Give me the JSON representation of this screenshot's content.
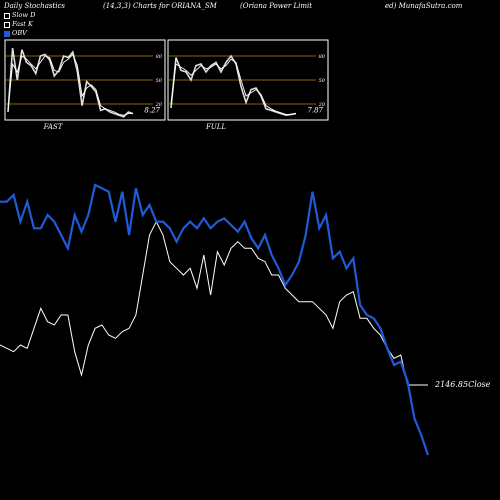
{
  "header": {
    "left": "Daily Stochastics",
    "mid": "(14,3,3) Charts for ORIANA_SM",
    "right": "(Oriana Power Limit",
    "right2": "ed) MunafaSutra.com"
  },
  "legend": [
    "Slow D",
    "Fast K",
    "OBV"
  ],
  "colors": {
    "obv": "#1f5bd8",
    "slow": "#ffffff",
    "fast": "#ffffff",
    "band": "#b8860b",
    "border": "#ffffff"
  },
  "chart_data": [
    {
      "type": "line",
      "title": "FAST",
      "yticks": [
        80,
        50,
        20
      ],
      "ylim": [
        0,
        100
      ],
      "last_value_label": "8.27",
      "series": [
        {
          "name": "Fast K",
          "values": [
            10,
            90,
            50,
            88,
            72,
            68,
            58,
            80,
            82,
            75,
            55,
            62,
            80,
            78,
            85,
            60,
            18,
            48,
            42,
            35,
            12,
            14,
            10,
            8,
            6,
            4,
            10,
            8
          ]
        },
        {
          "name": "Slow D",
          "values": [
            12,
            70,
            60,
            80,
            76,
            70,
            64,
            72,
            80,
            78,
            62,
            60,
            72,
            76,
            82,
            68,
            30,
            40,
            44,
            38,
            18,
            14,
            12,
            10,
            7,
            6,
            8,
            8
          ]
        }
      ]
    },
    {
      "type": "line",
      "title": "FULL",
      "yticks": [
        80,
        50,
        20
      ],
      "ylim": [
        0,
        100
      ],
      "last_value_label": "7.87",
      "series": [
        {
          "name": "Fast K",
          "values": [
            15,
            78,
            62,
            60,
            50,
            68,
            70,
            60,
            68,
            72,
            60,
            72,
            80,
            70,
            42,
            22,
            38,
            40,
            30,
            14,
            12,
            10,
            8,
            6,
            7,
            8
          ]
        },
        {
          "name": "Slow D",
          "values": [
            20,
            70,
            66,
            62,
            56,
            62,
            68,
            64,
            66,
            70,
            64,
            68,
            76,
            72,
            50,
            30,
            34,
            38,
            32,
            18,
            14,
            11,
            9,
            7,
            7,
            8
          ]
        }
      ]
    },
    {
      "type": "line",
      "title": "",
      "last_value_label": "2146.85Close",
      "series": [
        {
          "name": "OBV",
          "values": [
            90,
            90,
            92,
            84,
            90,
            82,
            82,
            86,
            84,
            80,
            76,
            86,
            81,
            86,
            95,
            94,
            93,
            84,
            93,
            80,
            94,
            86,
            89,
            84,
            84,
            82,
            78,
            82,
            84,
            82,
            85,
            82,
            84,
            85,
            83,
            81,
            84,
            79,
            76,
            80,
            74,
            70,
            65,
            68,
            72,
            80,
            93,
            82,
            86,
            73,
            75,
            70,
            73,
            59,
            56,
            55,
            52,
            46,
            41,
            42,
            36,
            25,
            20,
            14
          ]
        },
        {
          "name": "Close",
          "values": [
            47,
            46,
            45,
            47,
            46,
            52,
            58,
            54,
            53,
            56,
            56,
            45,
            38,
            47,
            52,
            53,
            50,
            49,
            51,
            52,
            56,
            68,
            80,
            84,
            80,
            72,
            70,
            68,
            70,
            64,
            74,
            62,
            75,
            71,
            76,
            78,
            76,
            76,
            73,
            72,
            68,
            68,
            64,
            62,
            60,
            60,
            60,
            58,
            56,
            52,
            60,
            62,
            63,
            55,
            55,
            52,
            50,
            46,
            43,
            44,
            35,
            35,
            35,
            35
          ]
        }
      ]
    }
  ]
}
